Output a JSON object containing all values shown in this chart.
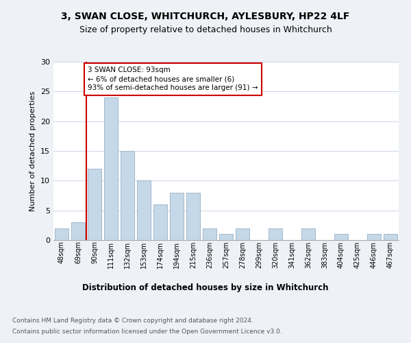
{
  "title": "3, SWAN CLOSE, WHITCHURCH, AYLESBURY, HP22 4LF",
  "subtitle": "Size of property relative to detached houses in Whitchurch",
  "xlabel": "Distribution of detached houses by size in Whitchurch",
  "ylabel": "Number of detached properties",
  "bins": [
    "48sqm",
    "69sqm",
    "90sqm",
    "111sqm",
    "132sqm",
    "153sqm",
    "174sqm",
    "194sqm",
    "215sqm",
    "236sqm",
    "257sqm",
    "278sqm",
    "299sqm",
    "320sqm",
    "341sqm",
    "362sqm",
    "383sqm",
    "404sqm",
    "425sqm",
    "446sqm",
    "467sqm"
  ],
  "values": [
    2,
    3,
    12,
    24,
    15,
    10,
    6,
    8,
    8,
    2,
    1,
    2,
    0,
    2,
    0,
    2,
    0,
    1,
    0,
    1,
    1
  ],
  "bar_color": "#c5d8e8",
  "bar_edge_color": "#a0b8cc",
  "annotation_text": "3 SWAN CLOSE: 93sqm\n← 6% of detached houses are smaller (6)\n93% of semi-detached houses are larger (91) →",
  "annotation_box_edge": "#cc0000",
  "vline_color": "#cc0000",
  "ylim": [
    0,
    30
  ],
  "yticks": [
    0,
    5,
    10,
    15,
    20,
    25,
    30
  ],
  "footer1": "Contains HM Land Registry data © Crown copyright and database right 2024.",
  "footer2": "Contains public sector information licensed under the Open Government Licence v3.0.",
  "bg_color": "#eef2f7",
  "plot_bg_color": "#ffffff",
  "grid_color": "#d0d8e8"
}
